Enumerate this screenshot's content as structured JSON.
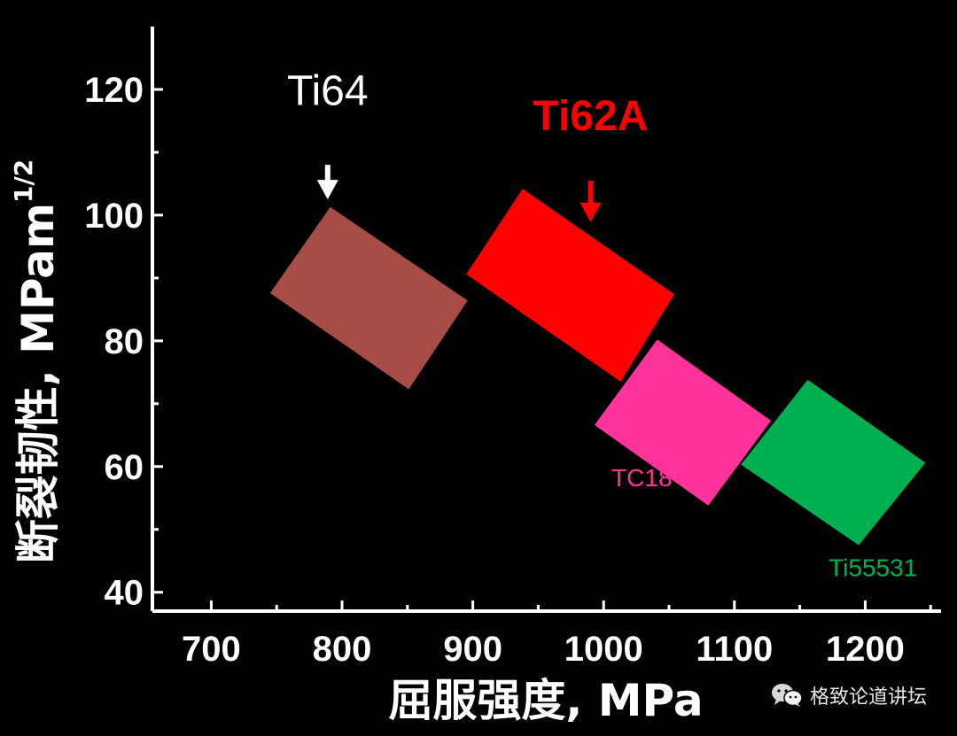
{
  "chart_data": {
    "type": "scatter",
    "xlabel": "屈服强度, MPa",
    "ylabel": "断裂韧性, MPam",
    "ylabel_superscript": "1/2",
    "xlim": [
      655,
      1258
    ],
    "ylim": [
      37,
      130
    ],
    "xticks": [
      700,
      800,
      900,
      1000,
      1100,
      1200
    ],
    "yticks": [
      40,
      60,
      80,
      100,
      120
    ],
    "regions": [
      {
        "name": "Ti64",
        "color": "#a84c46",
        "label_color": "#ffffff",
        "label_size": "large",
        "arrow": true,
        "corners": [
          [
            791,
            101.3
          ],
          [
            896,
            86.4
          ],
          [
            851,
            72.3
          ],
          [
            745,
            87.6
          ]
        ],
        "label_at": [
          789,
          117.5
        ],
        "arrow_from": [
          789,
          108
        ],
        "arrow_to": [
          789,
          102.5
        ]
      },
      {
        "name": "Ti62A",
        "color": "#ff0000",
        "label_color": "#ff0000",
        "label_size": "large",
        "label_bold": true,
        "arrow": true,
        "corners": [
          [
            938,
            104.2
          ],
          [
            1054,
            87.4
          ],
          [
            1013,
            73.5
          ],
          [
            895,
            90.6
          ]
        ],
        "label_at": [
          990,
          113.5
        ],
        "arrow_from": [
          990,
          105.5
        ],
        "arrow_to": [
          990,
          98.9
        ]
      },
      {
        "name": "TC18",
        "color": "#ff3399",
        "label_color": "#ff3399",
        "label_size": "small",
        "arrow": false,
        "corners": [
          [
            1041,
            80.2
          ],
          [
            1128,
            67.3
          ],
          [
            1080,
            53.8
          ],
          [
            993,
            66.6
          ]
        ],
        "label_at": [
          1006,
          56.9
        ]
      },
      {
        "name": "Ti55531",
        "color": "#00b050",
        "label_color": "#00b050",
        "label_size": "small",
        "arrow": false,
        "corners": [
          [
            1156,
            73.8
          ],
          [
            1246,
            60.6
          ],
          [
            1195,
            47.5
          ],
          [
            1105,
            60.3
          ]
        ],
        "label_at": [
          1172,
          42.6
        ]
      }
    ],
    "grid": false,
    "legend": "none"
  },
  "watermark": {
    "text": "格致论道讲坛",
    "icon": "wechat-icon"
  }
}
